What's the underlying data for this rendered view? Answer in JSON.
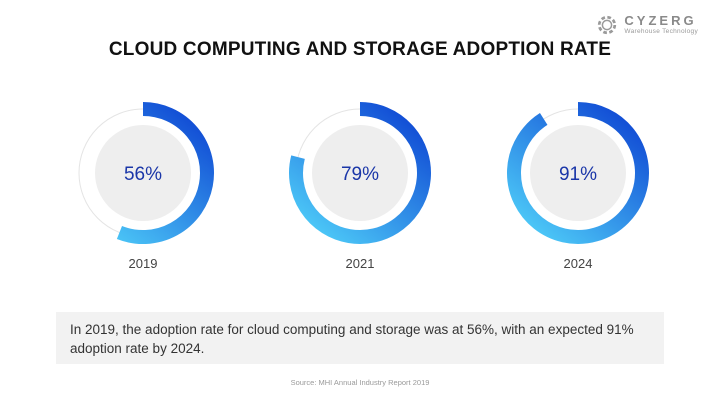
{
  "brand": {
    "name": "CYZERG",
    "tagline": "Warehouse Technology",
    "logo_icon": "gear-icon"
  },
  "chart_data": {
    "type": "donut",
    "title": "CLOUD COMPUTING AND STORAGE ADOPTION RATE",
    "categories": [
      "2019",
      "2021",
      "2024"
    ],
    "values": [
      56,
      79,
      91
    ],
    "labels": [
      "56%",
      "79%",
      "91%"
    ],
    "max": 100
  },
  "description": "In 2019, the adoption rate for cloud computing and storage was at 56%, with an expected 91% adoption rate by 2024.",
  "source": "Source: MHI Annual Industry Report 2019",
  "colors": {
    "ring_dark": "#0b3fd1",
    "ring_light": "#4cc8f7",
    "track": "#e4e4e4",
    "center": "#eeeeee",
    "value_text": "#1a36a8",
    "year_text": "#444444"
  }
}
